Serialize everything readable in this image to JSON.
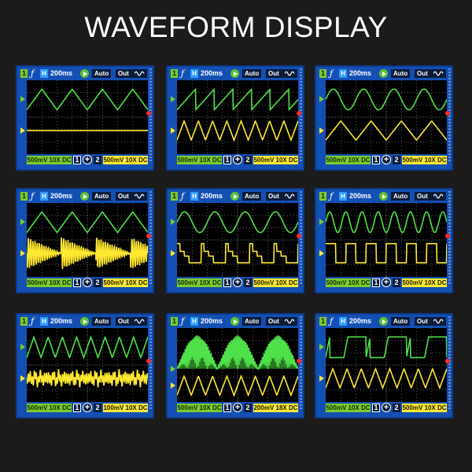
{
  "title": "WAVEFORM DISPLAY",
  "colors": {
    "background": "#1b1b1b",
    "frame": "#1450b4",
    "ch1": "#7ecb2a",
    "ch2": "#ffe830",
    "trigger_marker": "#ff2a2a"
  },
  "icons": {
    "trigger": "trigger-edge-icon",
    "run": "play-icon",
    "output": "sine-wave-icon",
    "add": "plus-icon"
  },
  "panels": [
    {
      "ch1_label": "1",
      "trigger_symbol": "ƒ",
      "h_label": "H",
      "timebase": "200ms",
      "mode": "Auto",
      "out_label": "Out",
      "ch1_scale": "500mV 10X DC",
      "ch1_num": "1",
      "ch2_num": "2",
      "ch2_scale": "500mV 10X DC",
      "ch1_wave": "triangle",
      "ch2_wave": "flat"
    },
    {
      "ch1_label": "1",
      "trigger_symbol": "ƒ",
      "h_label": "H",
      "timebase": "200ms",
      "mode": "Auto",
      "out_label": "Out",
      "ch1_scale": "500mV 10X DC",
      "ch1_num": "1",
      "ch2_num": "2",
      "ch2_scale": "500mV 10X DC",
      "ch1_wave": "sawtooth",
      "ch2_wave": "triangle-fast"
    },
    {
      "ch1_label": "1",
      "trigger_symbol": "ƒ",
      "h_label": "H",
      "timebase": "200ms",
      "mode": "Auto",
      "out_label": "Out",
      "ch1_scale": "500mV 10X DC",
      "ch1_num": "1",
      "ch2_num": "2",
      "ch2_scale": "500mV 10X DC",
      "ch1_wave": "sine",
      "ch2_wave": "triangle"
    },
    {
      "ch1_label": "1",
      "trigger_symbol": "ƒ",
      "h_label": "H",
      "timebase": "200ms",
      "mode": "Auto",
      "out_label": "Out",
      "ch1_scale": "500mV 10X DC",
      "ch1_num": "1",
      "ch2_num": "2",
      "ch2_scale": "500mV 10X DC",
      "ch1_wave": "triangle",
      "ch2_wave": "burst"
    },
    {
      "ch1_label": "1",
      "trigger_symbol": "ƒ",
      "h_label": "H",
      "timebase": "200ms",
      "mode": "Auto",
      "out_label": "Out",
      "ch1_scale": "500mV 10X DC",
      "ch1_num": "1",
      "ch2_num": "2",
      "ch2_scale": "500mV 10X DC",
      "ch1_wave": "sine",
      "ch2_wave": "steps"
    },
    {
      "ch1_label": "1",
      "trigger_symbol": "ƒ",
      "h_label": "H",
      "timebase": "200ms",
      "mode": "Auto",
      "out_label": "Out",
      "ch1_scale": "500mV 10X DC",
      "ch1_num": "1",
      "ch2_num": "2",
      "ch2_scale": "500mV 10X DC",
      "ch1_wave": "sine-fast",
      "ch2_wave": "square"
    },
    {
      "ch1_label": "1",
      "trigger_symbol": "ƒ",
      "h_label": "H",
      "timebase": "200ms",
      "mode": "Auto",
      "out_label": "Out",
      "ch1_scale": "500mV 10X DC",
      "ch1_num": "1",
      "ch2_num": "2",
      "ch2_scale": "100mV 10X DC",
      "ch1_wave": "triangle-fast",
      "ch2_wave": "noise"
    },
    {
      "ch1_label": "1",
      "trigger_symbol": "ƒ",
      "h_label": "H",
      "timebase": "200ms",
      "mode": "Auto",
      "out_label": "Out",
      "ch1_scale": "500mV 10X DC",
      "ch1_num": "1",
      "ch2_num": "2",
      "ch2_scale": "200mV 18X DC",
      "ch1_wave": "fm-burst",
      "ch2_wave": "triangle-fast"
    },
    {
      "ch1_label": "1",
      "trigger_symbol": "ƒ",
      "h_label": "H",
      "timebase": "200ms",
      "mode": "Auto",
      "out_label": "Out",
      "ch1_scale": "500mV 10X DC",
      "ch1_num": "1",
      "ch2_num": "2",
      "ch2_scale": "500mV 10X DC",
      "ch1_wave": "trapezoid",
      "ch2_wave": "triangle-fast"
    }
  ]
}
